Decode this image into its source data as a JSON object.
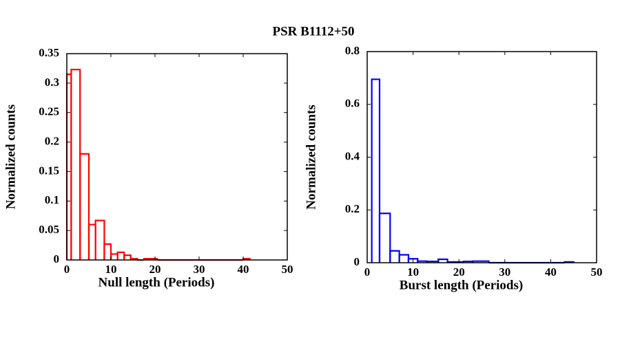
{
  "title": "PSR B1112+50",
  "chart_data": [
    {
      "type": "histogram",
      "xlabel": "Null length (Periods)",
      "ylabel": "Normalized counts",
      "color": "#ff0000",
      "bins": [
        0,
        1,
        3,
        5,
        6.5,
        8.5,
        10,
        11.5,
        13,
        14.5,
        16,
        17.5,
        19,
        20.5,
        40,
        41.5
      ],
      "counts": [
        0.315,
        0.323,
        0.18,
        0.06,
        0.067,
        0.027,
        0.01,
        0.013,
        0.008,
        0.002,
        0,
        0.002,
        0.002,
        0,
        0.002
      ],
      "xlim": [
        0,
        50
      ],
      "xticks": [
        0,
        10,
        20,
        30,
        40,
        50
      ],
      "ylim": [
        0,
        0.35
      ],
      "yticks": [
        0,
        0.05,
        0.1,
        0.15,
        0.2,
        0.25,
        0.3,
        0.35
      ]
    },
    {
      "type": "histogram",
      "xlabel": "Burst length (Periods)",
      "ylabel": "Normalized counts",
      "color": "#0000ff",
      "bins": [
        1,
        2.7,
        5,
        7,
        9,
        11,
        13,
        15.5,
        17.5,
        19,
        21,
        23,
        26.5,
        43,
        45
      ],
      "counts": [
        0.695,
        0.187,
        0.045,
        0.03,
        0.015,
        0.006,
        0.005,
        0.013,
        0.003,
        0.003,
        0.005,
        0.006,
        0,
        0.003
      ],
      "xlim": [
        0,
        50
      ],
      "xticks": [
        0,
        10,
        20,
        30,
        40,
        50
      ],
      "ylim": [
        0,
        0.8
      ],
      "yticks": [
        0,
        0.2,
        0.4,
        0.6,
        0.8
      ]
    }
  ]
}
